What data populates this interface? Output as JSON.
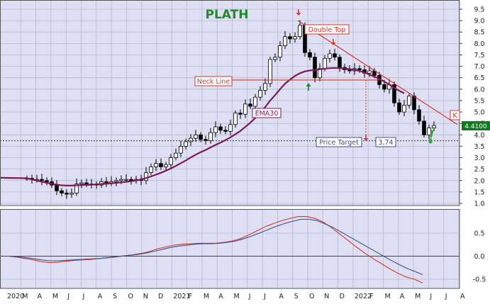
{
  "title": "PLATH",
  "colors": {
    "background": "#dedff2",
    "grid": "#b8b9d0",
    "candle_up": "#ffffff",
    "candle_down": "#000000",
    "ema": "#7a1a5a",
    "annotation": "#d23a2a",
    "title": "#1f8c2a",
    "macd_blue": "#3a4f8c",
    "macd_red": "#d23a2a",
    "last_price_bg": "#0f7a1f"
  },
  "chart_data": [
    {
      "type": "candlestick",
      "title": "PLATH",
      "x_tick_labels": [
        "2020",
        "M",
        "A",
        "M",
        "J",
        "J",
        "A",
        "S",
        "O",
        "N",
        "D",
        "2021",
        "F",
        "M",
        "A",
        "M",
        "J",
        "J",
        "A",
        "S",
        "O",
        "N",
        "D",
        "2022",
        "F",
        "M",
        "A",
        "M",
        "J",
        "J",
        "A"
      ],
      "y_ticks": [
        1.0,
        1.5,
        2.0,
        2.5,
        3.0,
        3.5,
        4.0,
        4.5,
        5.0,
        5.5,
        6.0,
        6.5,
        7.0,
        7.5,
        8.0,
        8.5,
        9.0,
        9.5
      ],
      "ylim": [
        0.85,
        9.75
      ],
      "grid": true,
      "ema_label": "EMA30",
      "last_price": "4.4100",
      "weekly_close": [
        2.1,
        2.05,
        2.05,
        2.0,
        1.95,
        1.8,
        1.55,
        1.45,
        1.4,
        1.45,
        1.85,
        1.9,
        1.85,
        1.85,
        1.8,
        1.95,
        1.9,
        1.95,
        2.0,
        2.05,
        2.05,
        2.0,
        2.05,
        2.0,
        2.35,
        2.6,
        2.75,
        2.6,
        2.7,
        3.0,
        3.2,
        3.5,
        3.7,
        3.85,
        4.0,
        3.8,
        3.75,
        4.1,
        4.35,
        4.2,
        4.15,
        4.45,
        4.95,
        4.9,
        5.35,
        5.25,
        5.65,
        5.95,
        6.25,
        7.3,
        7.4,
        7.9,
        8.3,
        8.2,
        8.3,
        8.8,
        7.6,
        7.4,
        6.5,
        6.9,
        7.35,
        7.55,
        7.4,
        6.95,
        6.85,
        6.8,
        6.9,
        6.85,
        6.7,
        6.8,
        6.6,
        6.2,
        6.0,
        6.2,
        5.4,
        5.0,
        5.3,
        5.7,
        5.1,
        4.6,
        4.0,
        4.3,
        4.41
      ],
      "ema30": [
        2.1,
        2.05,
        2.0,
        1.95,
        1.9,
        1.86,
        1.82,
        1.79,
        1.78,
        1.78,
        1.79,
        1.8,
        1.81,
        1.82,
        1.83,
        1.85,
        1.86,
        1.88,
        1.9,
        1.92,
        1.94,
        1.97,
        2.0,
        2.05,
        2.11,
        2.18,
        2.26,
        2.34,
        2.43,
        2.53,
        2.64,
        2.76,
        2.88,
        3.01,
        3.13,
        3.24,
        3.34,
        3.45,
        3.56,
        3.66,
        3.77,
        3.89,
        4.03,
        4.17,
        4.35,
        4.53,
        4.74,
        4.97,
        5.22,
        5.5,
        5.74,
        6.0,
        6.24,
        6.42,
        6.58,
        6.7,
        6.78,
        6.82,
        6.84,
        6.87,
        6.9,
        6.92,
        6.93,
        6.92,
        6.9,
        6.88,
        6.85,
        6.8,
        6.73,
        6.64,
        6.55,
        6.45,
        6.33,
        6.2,
        6.06,
        5.93,
        5.82
      ],
      "annotations": [
        {
          "text": "Double Top",
          "kind": "label"
        },
        {
          "text": "Neck Line",
          "kind": "label"
        },
        {
          "text": "EMA30",
          "kind": "label"
        },
        {
          "text": "Price Target",
          "kind": "label"
        },
        {
          "text": "3,74",
          "value": 3.74,
          "kind": "label"
        },
        {
          "text": "K",
          "kind": "label"
        },
        {
          "text": "!",
          "kind": "mark"
        }
      ],
      "neckline_value": 6.4,
      "target_level": 3.74
    },
    {
      "type": "line",
      "y_ticks": [
        -0.5,
        0.0,
        0.5
      ],
      "ylim": [
        -0.62,
        0.95
      ],
      "series": [
        {
          "values": [
            0,
            -0.02,
            -0.05,
            -0.08,
            -0.12,
            -0.14,
            -0.13,
            -0.11,
            -0.09,
            -0.08,
            -0.07,
            -0.05,
            -0.03,
            -0.01,
            0.01,
            0.03,
            0.06,
            0.1,
            0.16,
            0.2,
            0.24,
            0.26,
            0.27,
            0.28,
            0.28,
            0.28,
            0.3,
            0.33,
            0.38,
            0.46,
            0.55,
            0.64,
            0.71,
            0.77,
            0.82,
            0.86,
            0.86,
            0.82,
            0.74,
            0.62,
            0.48,
            0.34,
            0.2,
            0.07,
            -0.05,
            -0.16,
            -0.27,
            -0.37,
            -0.45,
            -0.5,
            -0.58
          ]
        },
        {
          "values": [
            0,
            -0.01,
            -0.03,
            -0.05,
            -0.08,
            -0.1,
            -0.1,
            -0.09,
            -0.08,
            -0.07,
            -0.06,
            -0.05,
            -0.04,
            -0.02,
            0.0,
            0.02,
            0.04,
            0.07,
            0.11,
            0.15,
            0.19,
            0.22,
            0.24,
            0.26,
            0.27,
            0.27,
            0.28,
            0.3,
            0.33,
            0.38,
            0.44,
            0.51,
            0.58,
            0.65,
            0.71,
            0.76,
            0.8,
            0.8,
            0.77,
            0.7,
            0.62,
            0.52,
            0.42,
            0.32,
            0.22,
            0.12,
            0.02,
            -0.08,
            -0.17,
            -0.26,
            -0.33,
            -0.4
          ]
        }
      ]
    }
  ]
}
